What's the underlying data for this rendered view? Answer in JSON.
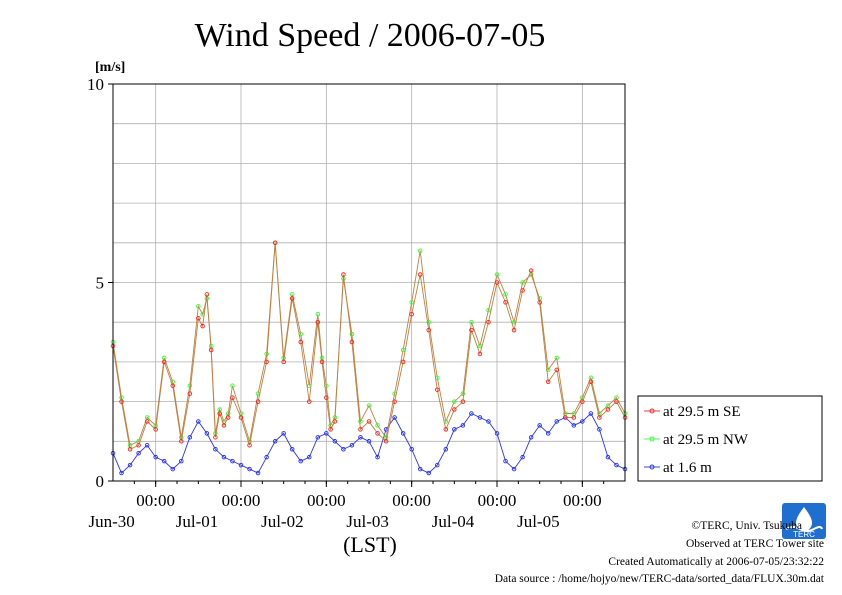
{
  "chart_data": {
    "type": "line",
    "title": "Wind Speed / 2006-07-05",
    "ylabel": "[m/s]",
    "xlabel": "(LST)",
    "ylim": [
      0,
      10
    ],
    "xlim": [
      0,
      6
    ],
    "x_unit": "days since Jun-30 00:00",
    "y_ticks": [
      "0",
      "5",
      "10"
    ],
    "y_tick_values": [
      0,
      5,
      10
    ],
    "x_ticks": [
      {
        "x": 0.5,
        "time": "00:00",
        "date": "Jun-30"
      },
      {
        "x": 1.5,
        "time": "00:00",
        "date": "Jul-01"
      },
      {
        "x": 2.5,
        "time": "00:00",
        "date": "Jul-02"
      },
      {
        "x": 3.5,
        "time": "00:00",
        "date": "Jul-03"
      },
      {
        "x": 4.5,
        "time": "00:00",
        "date": "Jul-04"
      },
      {
        "x": 5.5,
        "time": "00:00",
        "date": "Jul-05"
      }
    ],
    "grid": true,
    "legend_position": "right",
    "series": [
      {
        "name": "at 29.5 m SE",
        "color": "#ff2020",
        "x": [
          0.0,
          0.1,
          0.2,
          0.3,
          0.4,
          0.5,
          0.6,
          0.7,
          0.8,
          0.9,
          1.0,
          1.05,
          1.1,
          1.15,
          1.2,
          1.25,
          1.3,
          1.35,
          1.4,
          1.5,
          1.6,
          1.7,
          1.8,
          1.9,
          2.0,
          2.1,
          2.2,
          2.3,
          2.4,
          2.45,
          2.5,
          2.55,
          2.6,
          2.7,
          2.8,
          2.9,
          3.0,
          3.1,
          3.2,
          3.3,
          3.4,
          3.5,
          3.6,
          3.7,
          3.8,
          3.9,
          4.0,
          4.1,
          4.2,
          4.3,
          4.4,
          4.5,
          4.6,
          4.7,
          4.8,
          4.9,
          5.0,
          5.1,
          5.2,
          5.3,
          5.4,
          5.5,
          5.6,
          5.7,
          5.8,
          5.9,
          6.0
        ],
        "values": [
          3.4,
          2.0,
          0.8,
          0.9,
          1.5,
          1.3,
          3.0,
          2.4,
          1.0,
          2.2,
          4.1,
          3.9,
          4.7,
          3.3,
          1.1,
          1.7,
          1.4,
          1.6,
          2.1,
          1.6,
          0.9,
          2.0,
          3.0,
          6.0,
          3.0,
          4.6,
          3.5,
          2.0,
          4.0,
          3.0,
          2.1,
          1.3,
          1.5,
          5.2,
          3.5,
          1.3,
          1.5,
          1.2,
          1.0,
          2.0,
          3.0,
          4.2,
          5.2,
          3.8,
          2.3,
          1.3,
          1.8,
          2.0,
          3.8,
          3.2,
          4.0,
          5.0,
          4.5,
          3.8,
          4.8,
          5.3,
          4.5,
          2.5,
          2.8,
          1.6,
          1.6,
          2.0,
          2.5,
          1.6,
          1.8,
          2.0,
          1.6
        ]
      },
      {
        "name": "at 29.5 m NW",
        "color": "#30ff30",
        "x": [
          0.0,
          0.1,
          0.2,
          0.3,
          0.4,
          0.5,
          0.6,
          0.7,
          0.8,
          0.9,
          1.0,
          1.05,
          1.1,
          1.15,
          1.2,
          1.25,
          1.3,
          1.35,
          1.4,
          1.5,
          1.6,
          1.7,
          1.8,
          1.9,
          2.0,
          2.1,
          2.2,
          2.3,
          2.4,
          2.45,
          2.5,
          2.55,
          2.6,
          2.7,
          2.8,
          2.9,
          3.0,
          3.1,
          3.2,
          3.3,
          3.4,
          3.5,
          3.6,
          3.7,
          3.8,
          3.9,
          4.0,
          4.1,
          4.2,
          4.3,
          4.4,
          4.5,
          4.6,
          4.7,
          4.8,
          4.9,
          5.0,
          5.1,
          5.2,
          5.3,
          5.4,
          5.5,
          5.6,
          5.7,
          5.8,
          5.9,
          6.0
        ],
        "values": [
          3.5,
          2.1,
          0.9,
          1.0,
          1.6,
          1.4,
          3.1,
          2.5,
          1.1,
          2.4,
          4.4,
          4.2,
          4.6,
          3.4,
          1.2,
          1.8,
          1.5,
          1.7,
          2.4,
          1.7,
          1.0,
          2.2,
          3.2,
          6.0,
          3.1,
          4.7,
          3.7,
          2.4,
          4.2,
          3.1,
          2.4,
          1.4,
          1.6,
          5.1,
          3.7,
          1.5,
          1.9,
          1.4,
          1.1,
          2.2,
          3.3,
          4.5,
          5.8,
          4.0,
          2.6,
          1.5,
          2.0,
          2.2,
          4.0,
          3.4,
          4.3,
          5.2,
          4.7,
          4.0,
          5.0,
          5.2,
          4.6,
          2.8,
          3.1,
          1.7,
          1.7,
          2.1,
          2.6,
          1.7,
          1.9,
          2.1,
          1.7
        ]
      },
      {
        "name": "at 1.6 m",
        "color": "#2030ff",
        "x": [
          0.0,
          0.1,
          0.2,
          0.3,
          0.4,
          0.5,
          0.6,
          0.7,
          0.8,
          0.9,
          1.0,
          1.1,
          1.2,
          1.3,
          1.4,
          1.5,
          1.6,
          1.7,
          1.8,
          1.9,
          2.0,
          2.1,
          2.2,
          2.3,
          2.4,
          2.5,
          2.6,
          2.7,
          2.8,
          2.9,
          3.0,
          3.1,
          3.2,
          3.3,
          3.4,
          3.5,
          3.6,
          3.7,
          3.8,
          3.9,
          4.0,
          4.1,
          4.2,
          4.3,
          4.4,
          4.5,
          4.6,
          4.7,
          4.8,
          4.9,
          5.0,
          5.1,
          5.2,
          5.3,
          5.4,
          5.5,
          5.6,
          5.7,
          5.8,
          5.9,
          6.0
        ],
        "values": [
          0.7,
          0.2,
          0.4,
          0.7,
          0.9,
          0.6,
          0.5,
          0.3,
          0.5,
          1.1,
          1.5,
          1.2,
          0.8,
          0.6,
          0.5,
          0.4,
          0.3,
          0.2,
          0.6,
          1.0,
          1.2,
          0.8,
          0.5,
          0.6,
          1.1,
          1.2,
          1.0,
          0.8,
          0.9,
          1.1,
          1.0,
          0.6,
          1.3,
          1.6,
          1.2,
          0.8,
          0.3,
          0.2,
          0.4,
          0.8,
          1.3,
          1.4,
          1.7,
          1.6,
          1.5,
          1.2,
          0.5,
          0.3,
          0.6,
          1.1,
          1.4,
          1.2,
          1.5,
          1.6,
          1.4,
          1.5,
          1.7,
          1.3,
          0.6,
          0.4,
          0.3
        ]
      }
    ]
  },
  "footer": {
    "copyright": "©TERC, Univ. Tsukuba",
    "observed": "Observed at TERC Tower site",
    "created": "Created Automatically at 2006-07-05/23:32:22",
    "source": "Data source : /home/hojyo/new/TERC-data/sorted_data/FLUX.30m.dat"
  },
  "logo_text": "TERC"
}
